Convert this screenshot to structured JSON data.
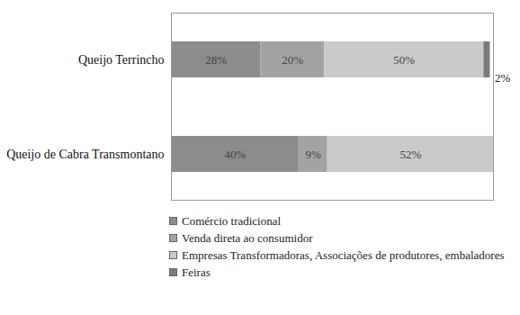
{
  "chart_data": {
    "type": "bar",
    "orientation": "horizontal",
    "stacked": true,
    "data_labels": true,
    "tick_labels": "y",
    "legend": "bottom",
    "categories": [
      "Queijo Terrincho",
      "Queijo de Cabra Transmontano"
    ],
    "series": [
      {
        "name": "Comércio tradicional",
        "color": "#8c8c8c",
        "values": [
          28,
          40
        ],
        "value_labels": [
          "28%",
          "40%"
        ]
      },
      {
        "name": "Venda direta ao consumidor",
        "color": "#a3a3a3",
        "values": [
          20,
          9
        ],
        "value_labels": [
          "20%",
          "9%"
        ]
      },
      {
        "name": "Empresas Transformadoras, Associações de produtores, embaladores",
        "color": "#cacaca",
        "values": [
          50,
          52
        ],
        "value_labels": [
          "50%",
          "52%"
        ]
      },
      {
        "name": "Feiras",
        "color": "#7a7a7a",
        "values": [
          2,
          null
        ],
        "value_labels": [
          "2%",
          null
        ]
      }
    ],
    "xlim": [
      0,
      101
    ],
    "xticks": []
  }
}
